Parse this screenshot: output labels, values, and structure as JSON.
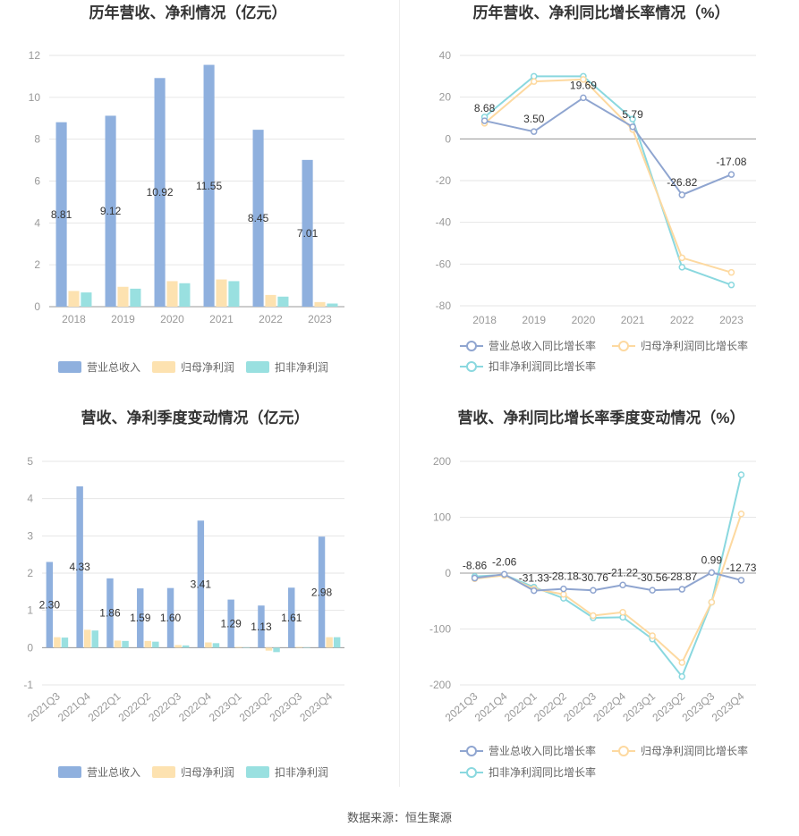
{
  "source": "数据来源：恒生聚源",
  "colors": {
    "revenue": "#8fb0de",
    "net_profit": "#fde2b0",
    "deducted_profit": "#99e0e0",
    "revenue_line": "#8fa5d0",
    "net_line": "#fdd9a0",
    "deducted_line": "#8ad8df"
  },
  "chart_data": [
    {
      "id": "annual-bar",
      "type": "bar",
      "title": "历年营收、净利情况（亿元）",
      "categories": [
        "2018",
        "2019",
        "2020",
        "2021",
        "2022",
        "2023"
      ],
      "ylim": [
        0,
        12
      ],
      "yticks": [
        0,
        2,
        4,
        6,
        8,
        10,
        12
      ],
      "series": [
        {
          "name": "营业总收入",
          "values": [
            8.81,
            9.12,
            10.92,
            11.55,
            8.45,
            7.01
          ],
          "labels": [
            "8.81",
            "9.12",
            "10.92",
            "11.55",
            "8.45",
            "7.01"
          ]
        },
        {
          "name": "归母净利润",
          "values": [
            0.75,
            0.95,
            1.22,
            1.3,
            0.56,
            0.22
          ]
        },
        {
          "name": "扣非净利润",
          "values": [
            0.68,
            0.86,
            1.12,
            1.22,
            0.48,
            0.15
          ]
        }
      ],
      "legend": "bottom"
    },
    {
      "id": "annual-growth",
      "type": "line",
      "title": "历年营收、净利同比增长率情况（%）",
      "categories": [
        "2018",
        "2019",
        "2020",
        "2021",
        "2022",
        "2023"
      ],
      "ylim": [
        -80,
        40
      ],
      "yticks": [
        -80,
        -60,
        -40,
        -20,
        0,
        20,
        40
      ],
      "series": [
        {
          "name": "营业总收入同比增长率",
          "values": [
            8.68,
            3.5,
            19.69,
            5.79,
            -26.82,
            -17.08
          ],
          "labels": [
            "8.68",
            "3.50",
            "19.69",
            "5.79",
            "-26.82",
            "-17.08"
          ]
        },
        {
          "name": "归母净利润同比增长率",
          "values": [
            7.5,
            27.5,
            28.5,
            4.5,
            -57.0,
            -64.0
          ]
        },
        {
          "name": "扣非净利润同比增长率",
          "values": [
            10.5,
            30.0,
            30.0,
            9.5,
            -61.5,
            -70.0
          ]
        }
      ],
      "legend": "bottom"
    },
    {
      "id": "quarter-bar",
      "type": "bar",
      "title": "营收、净利季度变动情况（亿元）",
      "categories": [
        "2021Q3",
        "2021Q4",
        "2022Q1",
        "2022Q2",
        "2022Q3",
        "2022Q4",
        "2023Q1",
        "2023Q2",
        "2023Q3",
        "2023Q4"
      ],
      "ylim": [
        -1,
        5
      ],
      "yticks": [
        -1,
        0,
        1,
        2,
        3,
        4,
        5
      ],
      "series": [
        {
          "name": "营业总收入",
          "values": [
            2.3,
            4.33,
            1.86,
            1.59,
            1.6,
            3.41,
            1.29,
            1.13,
            1.61,
            2.98
          ],
          "labels": [
            "2.30",
            "4.33",
            "1.86",
            "1.59",
            "1.60",
            "3.41",
            "1.29",
            "1.13",
            "1.61",
            "2.98"
          ]
        },
        {
          "name": "归母净利润",
          "values": [
            0.28,
            0.48,
            0.19,
            0.18,
            0.07,
            0.14,
            0.02,
            -0.08,
            0.02,
            0.28
          ]
        },
        {
          "name": "扣非净利润",
          "values": [
            0.27,
            0.46,
            0.18,
            0.16,
            0.06,
            0.12,
            0.01,
            -0.12,
            0.01,
            0.28
          ]
        }
      ],
      "legend": "bottom"
    },
    {
      "id": "quarter-growth",
      "type": "line",
      "title": "营收、净利同比增长率季度变动情况（%）",
      "categories": [
        "2021Q3",
        "2021Q4",
        "2022Q1",
        "2022Q2",
        "2022Q3",
        "2022Q4",
        "2023Q1",
        "2023Q2",
        "2023Q3",
        "2023Q4"
      ],
      "ylim": [
        -200,
        200
      ],
      "yticks": [
        -200,
        -100,
        0,
        100,
        200
      ],
      "series": [
        {
          "name": "营业总收入同比增长率",
          "values": [
            -8.86,
            -2.06,
            -31.33,
            -28.18,
            -30.76,
            -21.22,
            -30.56,
            -28.87,
            0.99,
            -12.73
          ],
          "labels": [
            "-8.86",
            "-2.06",
            "-31.33",
            "-28.18",
            "-30.76",
            "-21.22",
            "-30.56",
            "-28.87",
            "0.99",
            "-12.73"
          ]
        },
        {
          "name": "归母净利润同比增长率",
          "values": [
            -10,
            -4,
            -28,
            -38,
            -76,
            -70,
            -112,
            -160,
            -52,
            106
          ]
        },
        {
          "name": "扣非净利润同比增长率",
          "values": [
            -6,
            -3,
            -25,
            -45,
            -80,
            -79,
            -118,
            -185,
            -52,
            176
          ]
        }
      ],
      "legend": "bottom"
    }
  ]
}
